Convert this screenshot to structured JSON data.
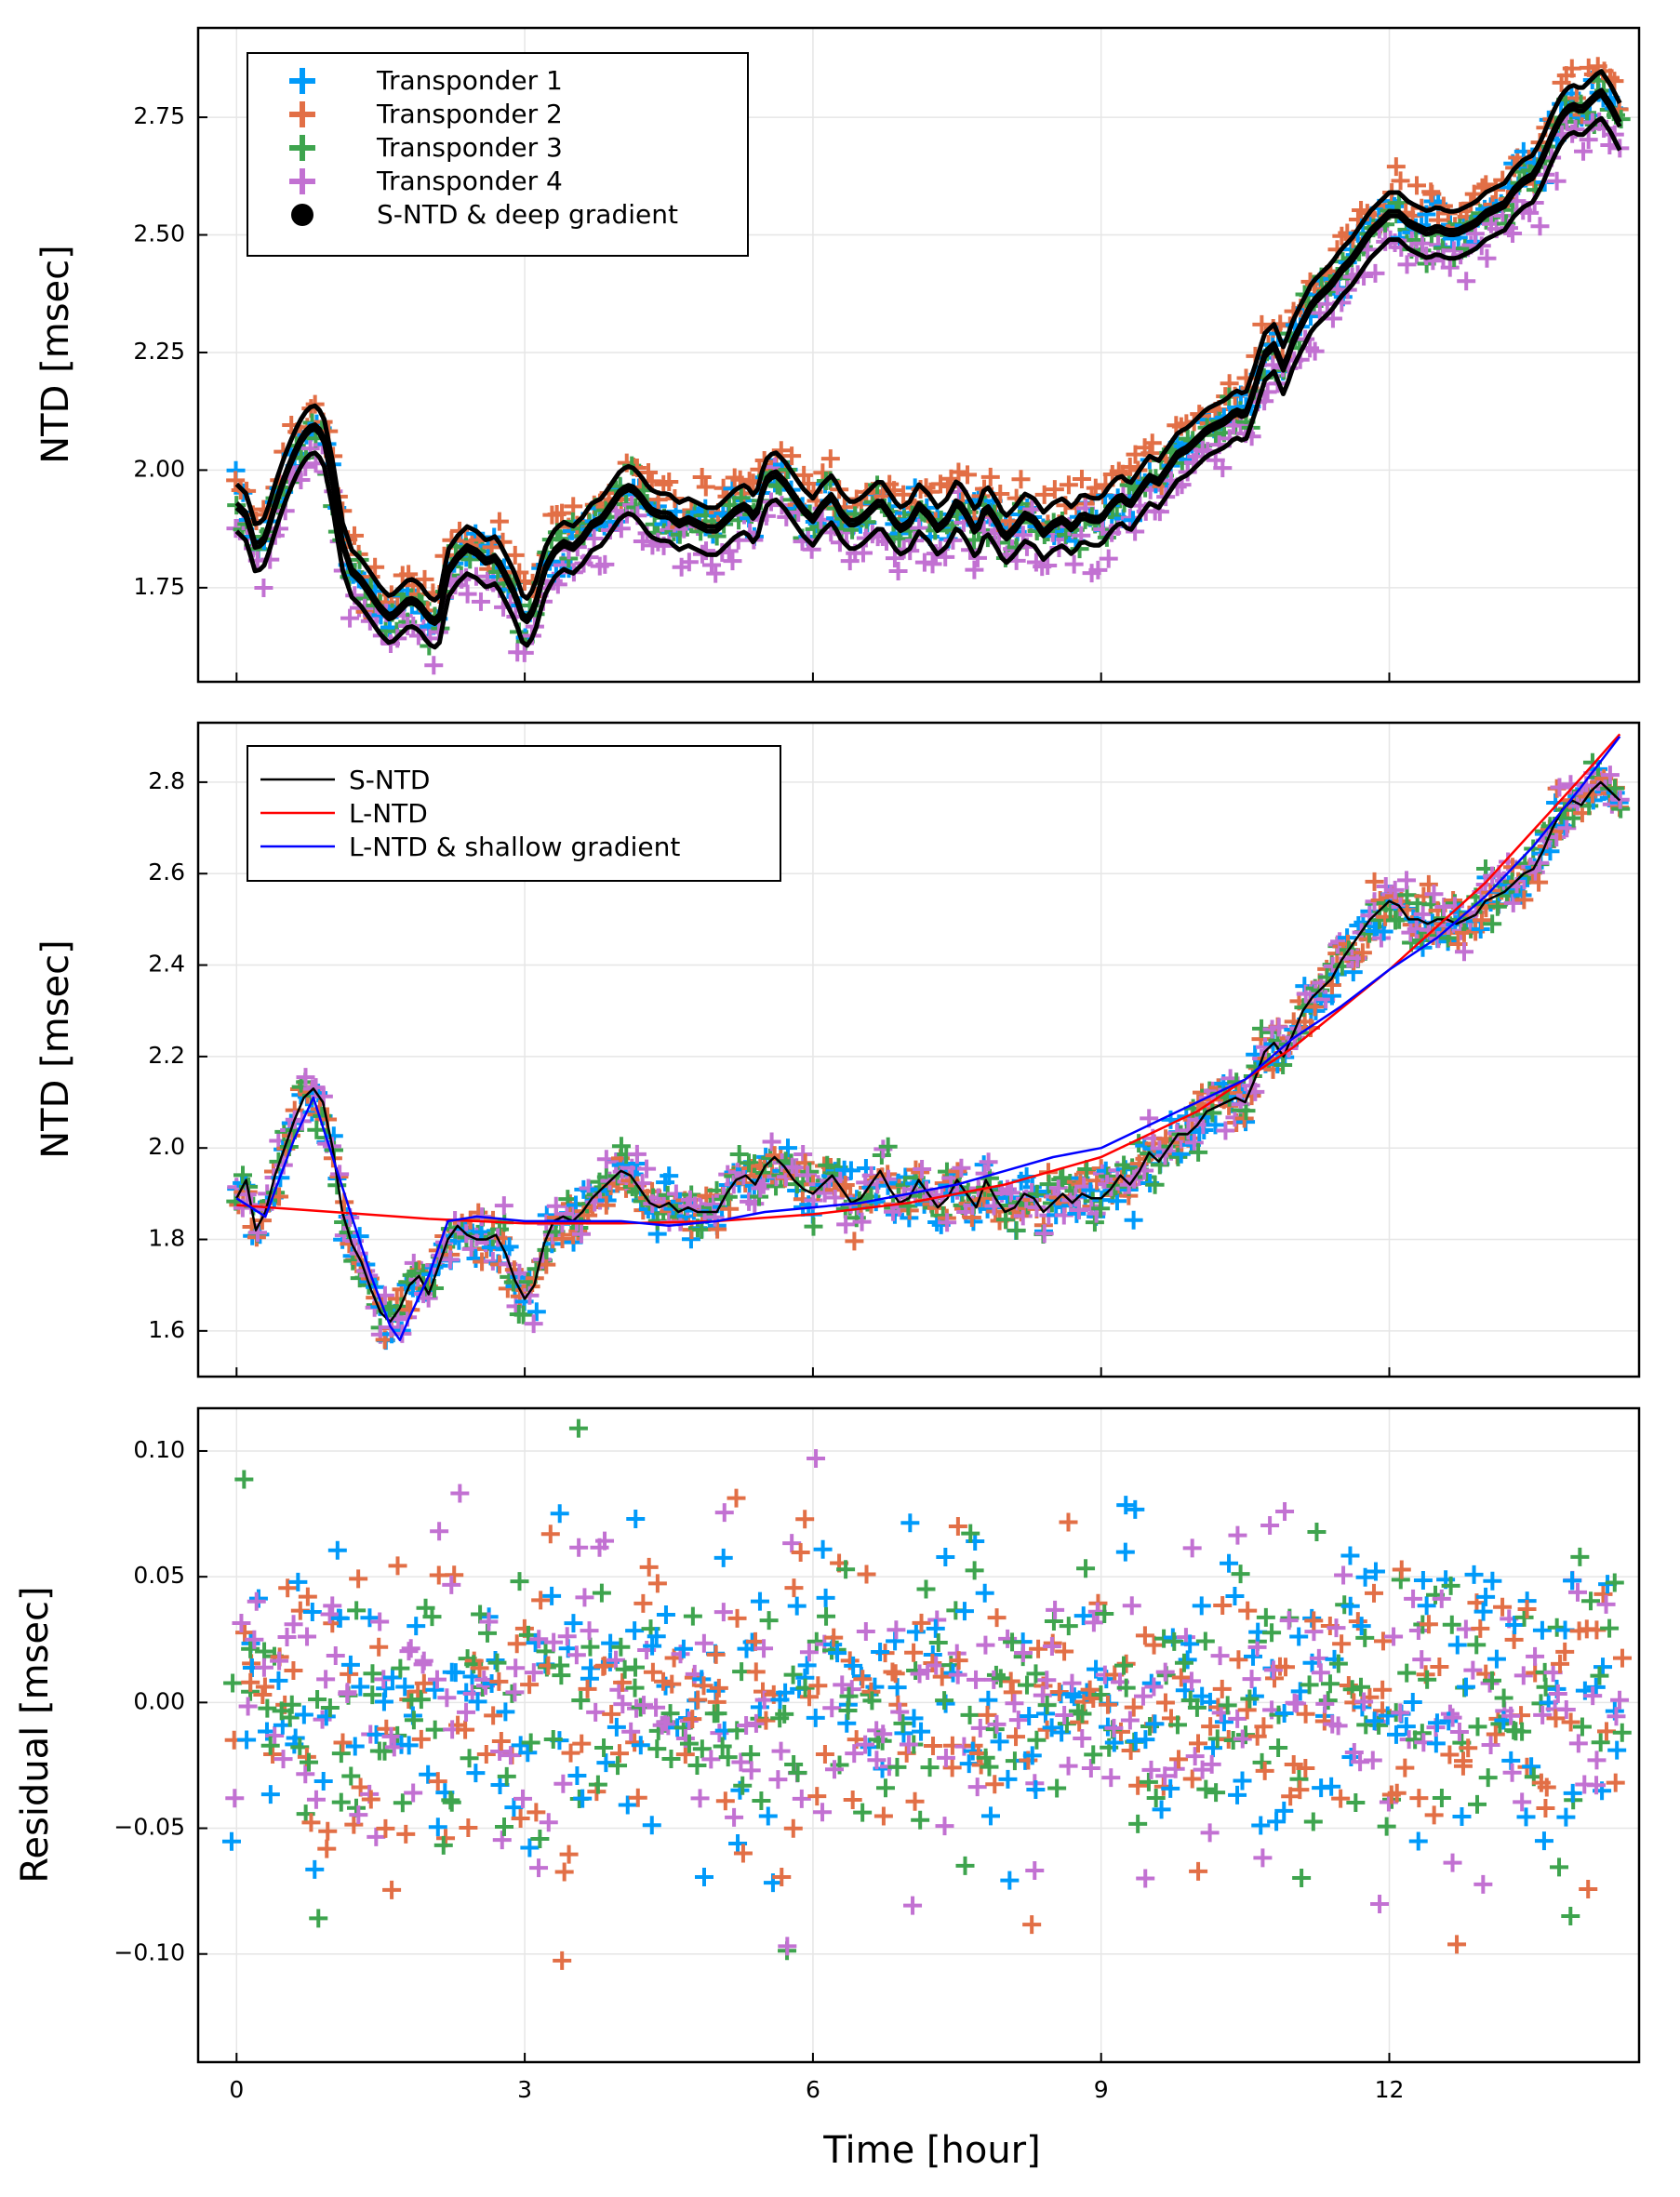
{
  "chart_data": [
    {
      "type": "scatter",
      "ylabel": "NTD [msec]",
      "xlabel": "",
      "xlim": [
        -0.4,
        14.6
      ],
      "ylim": [
        1.55,
        2.94
      ],
      "x_ticks": [
        0,
        3,
        6,
        9,
        12
      ],
      "y_ticks": [
        1.75,
        2.0,
        2.25,
        2.5,
        2.75
      ],
      "y_tick_labels": [
        "1.75",
        "2.00",
        "2.25",
        "2.50",
        "2.75"
      ],
      "grid": true,
      "legend_position": "top-left",
      "legend": [
        "Transponder 1",
        "Transponder 2",
        "Transponder 3",
        "Transponder 4",
        "S-NTD & deep gradient"
      ],
      "series": [
        {
          "name": "Transponder 1",
          "color": "#009AFA",
          "marker": "cross",
          "offset": 0.0
        },
        {
          "name": "Transponder 2",
          "color": "#E26F46",
          "marker": "cross",
          "offset": 0.04
        },
        {
          "name": "Transponder 3",
          "color": "#3EA44E",
          "marker": "cross",
          "offset": -0.01
        },
        {
          "name": "Transponder 4",
          "color": "#C271D2",
          "marker": "cross",
          "offset": -0.06
        },
        {
          "name": "S-NTD & deep gradient",
          "color": "#000000",
          "marker": "dot-line"
        }
      ],
      "signal_x": [
        0.0,
        0.1,
        0.2,
        0.3,
        0.4,
        0.5,
        0.6,
        0.7,
        0.8,
        0.9,
        1.0,
        1.1,
        1.2,
        1.3,
        1.4,
        1.5,
        1.6,
        1.7,
        1.8,
        1.9,
        2.0,
        2.1,
        2.2,
        2.3,
        2.4,
        2.5,
        2.6,
        2.7,
        2.8,
        2.9,
        3.0,
        3.1,
        3.2,
        3.3,
        3.4,
        3.5,
        3.6,
        3.7,
        3.8,
        3.9,
        4.0,
        4.1,
        4.2,
        4.3,
        4.4,
        4.5,
        4.6,
        4.7,
        4.8,
        4.9,
        5.0,
        5.1,
        5.2,
        5.3,
        5.4,
        5.5,
        5.6,
        5.7,
        5.8,
        5.9,
        6.0,
        6.1,
        6.2,
        6.3,
        6.4,
        6.5,
        6.6,
        6.7,
        6.8,
        6.9,
        7.0,
        7.1,
        7.2,
        7.3,
        7.4,
        7.5,
        7.6,
        7.7,
        7.8,
        7.9,
        8.0,
        8.1,
        8.2,
        8.3,
        8.4,
        8.5,
        8.6,
        8.7,
        8.8,
        8.9,
        9.0,
        9.1,
        9.2,
        9.3,
        9.4,
        9.5,
        9.6,
        9.7,
        9.8,
        9.9,
        10.0,
        10.1,
        10.2,
        10.3,
        10.4,
        10.5,
        10.6,
        10.7,
        10.8,
        10.9,
        11.0,
        11.1,
        11.2,
        11.3,
        11.4,
        11.5,
        11.6,
        11.7,
        11.8,
        11.9,
        12.0,
        12.1,
        12.2,
        12.3,
        12.4,
        12.5,
        12.6,
        12.7,
        12.8,
        12.9,
        13.0,
        13.1,
        13.2,
        13.3,
        13.4,
        13.5,
        13.6,
        13.7,
        13.8,
        13.9,
        14.0,
        14.1,
        14.2,
        14.3,
        14.4
      ],
      "signal_y": [
        1.93,
        1.91,
        1.84,
        1.86,
        1.93,
        1.99,
        2.04,
        2.08,
        2.1,
        2.08,
        1.98,
        1.85,
        1.79,
        1.77,
        1.74,
        1.71,
        1.69,
        1.71,
        1.73,
        1.72,
        1.69,
        1.68,
        1.79,
        1.82,
        1.84,
        1.83,
        1.81,
        1.82,
        1.78,
        1.74,
        1.68,
        1.71,
        1.79,
        1.83,
        1.85,
        1.84,
        1.86,
        1.89,
        1.9,
        1.93,
        1.96,
        1.97,
        1.95,
        1.92,
        1.91,
        1.91,
        1.89,
        1.9,
        1.89,
        1.88,
        1.88,
        1.9,
        1.92,
        1.93,
        1.9,
        1.98,
        2.0,
        1.98,
        1.95,
        1.92,
        1.9,
        1.93,
        1.95,
        1.91,
        1.89,
        1.9,
        1.92,
        1.94,
        1.91,
        1.88,
        1.89,
        1.93,
        1.91,
        1.88,
        1.9,
        1.94,
        1.91,
        1.87,
        1.93,
        1.9,
        1.86,
        1.88,
        1.91,
        1.9,
        1.87,
        1.89,
        1.9,
        1.88,
        1.91,
        1.9,
        1.9,
        1.93,
        1.95,
        1.93,
        1.96,
        1.99,
        1.98,
        2.01,
        2.04,
        2.05,
        2.07,
        2.09,
        2.1,
        2.11,
        2.13,
        2.12,
        2.18,
        2.25,
        2.27,
        2.22,
        2.28,
        2.32,
        2.36,
        2.38,
        2.4,
        2.43,
        2.45,
        2.48,
        2.51,
        2.53,
        2.55,
        2.55,
        2.53,
        2.52,
        2.51,
        2.52,
        2.51,
        2.51,
        2.52,
        2.53,
        2.55,
        2.56,
        2.57,
        2.6,
        2.62,
        2.63,
        2.67,
        2.72,
        2.76,
        2.78,
        2.77,
        2.79,
        2.81,
        2.78,
        2.74
      ]
    },
    {
      "type": "scatter",
      "ylabel": "NTD [msec]",
      "xlabel": "",
      "xlim": [
        -0.4,
        14.6
      ],
      "ylim": [
        1.5,
        2.93
      ],
      "x_ticks": [
        0,
        3,
        6,
        9,
        12
      ],
      "y_ticks": [
        1.6,
        1.8,
        2.0,
        2.2,
        2.4,
        2.6,
        2.8
      ],
      "y_tick_labels": [
        "1.6",
        "1.8",
        "2.0",
        "2.2",
        "2.4",
        "2.6",
        "2.8"
      ],
      "grid": true,
      "legend_position": "top-left",
      "legend": [
        "S-NTD",
        "L-NTD",
        "L-NTD & shallow gradient"
      ],
      "series": [
        {
          "name": "S-NTD",
          "color": "#000000",
          "marker": "line"
        },
        {
          "name": "L-NTD",
          "color": "#FF0000",
          "marker": "line"
        },
        {
          "name": "L-NTD & shallow gradient",
          "color": "#0000FF",
          "marker": "line"
        }
      ],
      "s_ntd_x": [
        0.0,
        0.1,
        0.2,
        0.3,
        0.4,
        0.5,
        0.6,
        0.7,
        0.8,
        0.9,
        1.0,
        1.1,
        1.2,
        1.3,
        1.4,
        1.5,
        1.6,
        1.7,
        1.8,
        1.9,
        2.0,
        2.1,
        2.2,
        2.3,
        2.4,
        2.5,
        2.6,
        2.7,
        2.8,
        2.9,
        3.0,
        3.1,
        3.2,
        3.3,
        3.4,
        3.5,
        3.6,
        3.7,
        3.8,
        3.9,
        4.0,
        4.1,
        4.2,
        4.3,
        4.4,
        4.5,
        4.6,
        4.7,
        4.8,
        4.9,
        5.0,
        5.1,
        5.2,
        5.3,
        5.4,
        5.5,
        5.6,
        5.7,
        5.8,
        5.9,
        6.0,
        6.1,
        6.2,
        6.3,
        6.4,
        6.5,
        6.6,
        6.7,
        6.8,
        6.9,
        7.0,
        7.1,
        7.2,
        7.3,
        7.4,
        7.5,
        7.6,
        7.7,
        7.8,
        7.9,
        8.0,
        8.1,
        8.2,
        8.3,
        8.4,
        8.5,
        8.6,
        8.7,
        8.8,
        8.9,
        9.0,
        9.1,
        9.2,
        9.3,
        9.4,
        9.5,
        9.6,
        9.7,
        9.8,
        9.9,
        10.0,
        10.1,
        10.2,
        10.3,
        10.4,
        10.5,
        10.6,
        10.7,
        10.8,
        10.9,
        11.0,
        11.1,
        11.2,
        11.3,
        11.4,
        11.5,
        11.6,
        11.7,
        11.8,
        11.9,
        12.0,
        12.1,
        12.2,
        12.3,
        12.4,
        12.5,
        12.6,
        12.7,
        12.8,
        12.9,
        13.0,
        13.1,
        13.2,
        13.3,
        13.4,
        13.5,
        13.6,
        13.7,
        13.8,
        13.9,
        14.0,
        14.1,
        14.2,
        14.3,
        14.4
      ],
      "s_ntd_y": [
        1.89,
        1.93,
        1.82,
        1.86,
        1.94,
        2.0,
        2.06,
        2.11,
        2.13,
        2.1,
        2.0,
        1.86,
        1.79,
        1.75,
        1.69,
        1.64,
        1.62,
        1.65,
        1.7,
        1.72,
        1.68,
        1.74,
        1.8,
        1.83,
        1.81,
        1.8,
        1.8,
        1.81,
        1.77,
        1.71,
        1.67,
        1.7,
        1.79,
        1.84,
        1.85,
        1.84,
        1.86,
        1.89,
        1.91,
        1.93,
        1.95,
        1.94,
        1.91,
        1.88,
        1.87,
        1.88,
        1.86,
        1.87,
        1.86,
        1.86,
        1.86,
        1.9,
        1.93,
        1.94,
        1.92,
        1.96,
        1.98,
        1.96,
        1.93,
        1.91,
        1.9,
        1.92,
        1.94,
        1.91,
        1.88,
        1.89,
        1.92,
        1.95,
        1.91,
        1.88,
        1.89,
        1.93,
        1.9,
        1.87,
        1.89,
        1.93,
        1.9,
        1.87,
        1.93,
        1.89,
        1.86,
        1.87,
        1.9,
        1.89,
        1.86,
        1.88,
        1.9,
        1.88,
        1.9,
        1.89,
        1.89,
        1.91,
        1.94,
        1.92,
        1.95,
        1.99,
        1.97,
        2.0,
        2.03,
        2.03,
        2.05,
        2.08,
        2.09,
        2.1,
        2.11,
        2.1,
        2.15,
        2.21,
        2.23,
        2.2,
        2.25,
        2.3,
        2.33,
        2.35,
        2.37,
        2.41,
        2.44,
        2.47,
        2.5,
        2.52,
        2.54,
        2.53,
        2.5,
        2.5,
        2.49,
        2.5,
        2.5,
        2.49,
        2.5,
        2.51,
        2.54,
        2.55,
        2.56,
        2.58,
        2.6,
        2.61,
        2.65,
        2.7,
        2.74,
        2.76,
        2.75,
        2.78,
        2.8,
        2.78,
        2.76
      ],
      "l_ntd_x": [
        0.0,
        1.0,
        2.0,
        3.0,
        4.0,
        5.0,
        6.0,
        7.0,
        8.0,
        9.0,
        10.0,
        11.0,
        12.0,
        13.0,
        14.0,
        14.4
      ],
      "l_ntd_y": [
        1.875,
        1.86,
        1.845,
        1.835,
        1.835,
        1.84,
        1.855,
        1.88,
        1.92,
        1.98,
        2.08,
        2.22,
        2.39,
        2.58,
        2.81,
        2.905
      ],
      "shallow_x": [
        0.0,
        0.3,
        0.6,
        0.8,
        1.0,
        1.2,
        1.4,
        1.6,
        1.7,
        1.8,
        2.0,
        2.2,
        2.5,
        3.0,
        3.5,
        4.0,
        4.5,
        5.0,
        5.5,
        6.0,
        6.5,
        7.0,
        7.5,
        8.0,
        8.5,
        9.0,
        9.5,
        10.0,
        10.5,
        11.0,
        11.5,
        12.0,
        12.5,
        13.0,
        13.5,
        14.0,
        14.4
      ],
      "shallow_y": [
        1.89,
        1.85,
        2.02,
        2.11,
        1.98,
        1.85,
        1.72,
        1.61,
        1.58,
        1.63,
        1.72,
        1.84,
        1.85,
        1.84,
        1.84,
        1.84,
        1.83,
        1.84,
        1.86,
        1.87,
        1.88,
        1.9,
        1.92,
        1.95,
        1.98,
        2.0,
        2.05,
        2.1,
        2.15,
        2.24,
        2.31,
        2.39,
        2.46,
        2.55,
        2.66,
        2.79,
        2.9
      ]
    },
    {
      "type": "scatter",
      "ylabel": "Residual [msec]",
      "xlabel": "Time [hour]",
      "xlim": [
        -0.4,
        14.6
      ],
      "ylim": [
        -0.143,
        0.117
      ],
      "x_ticks": [
        0,
        3,
        6,
        9,
        12
      ],
      "x_tick_labels": [
        "0",
        "3",
        "6",
        "9",
        "12"
      ],
      "y_ticks": [
        -0.1,
        -0.05,
        0.0,
        0.05,
        0.1
      ],
      "y_tick_labels": [
        "−0.10",
        "−0.05",
        "0.00",
        "0.05",
        "0.10"
      ],
      "grid": true,
      "series": [
        {
          "name": "Transponder 1",
          "color": "#009AFA"
        },
        {
          "name": "Transponder 2",
          "color": "#E26F46"
        },
        {
          "name": "Transponder 3",
          "color": "#3EA44E"
        },
        {
          "name": "Transponder 4",
          "color": "#C271D2"
        }
      ],
      "residual_std": 0.032
    }
  ]
}
